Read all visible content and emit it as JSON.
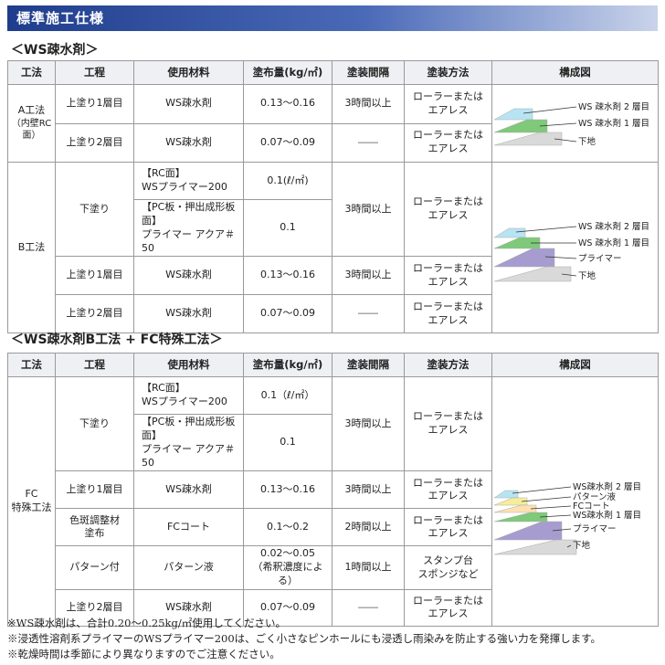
{
  "banner": {
    "title": "標準施工仕様"
  },
  "ws": {
    "title": "＜WS疎水剤＞",
    "headers": [
      "工法",
      "工程",
      "使用材料",
      "塗布量(kg/㎡)",
      "塗装間隔",
      "塗装方法",
      "構成図"
    ],
    "methodA": "A工法",
    "methodA_sub": "（内壁RC面）",
    "methodB": "B工法",
    "rows": {
      "a1": {
        "step": "上塗り1層目",
        "material": "WS疎水剤",
        "amount": "0.13～0.16",
        "interval": "3時間以上",
        "method1": "ローラーまたは",
        "method2": "エアレス"
      },
      "a2": {
        "step": "上塗り2層目",
        "material": "WS疎水剤",
        "amount": "0.07～0.09",
        "interval": "――",
        "method1": "ローラーまたは",
        "method2": "エアレス"
      },
      "b0": {
        "step": "下塗り",
        "mat1a": "【RC面】",
        "mat1b": "WSプライマー200",
        "amt1": "0.1(ℓ/㎡)",
        "mat2a": "【PC板・押出成形板面】",
        "mat2b": "プライマー アクア＃50",
        "amt2": "0.1",
        "interval": "3時間以上",
        "method1": "ローラーまたは",
        "method2": "エアレス"
      },
      "b1": {
        "step": "上塗り1層目",
        "material": "WS疎水剤",
        "amount": "0.13～0.16",
        "interval": "3時間以上",
        "method1": "ローラーまたは",
        "method2": "エアレス"
      },
      "b2": {
        "step": "上塗り2層目",
        "material": "WS疎水剤",
        "amount": "0.07～0.09",
        "interval": "――",
        "method1": "ローラーまたは",
        "method2": "エアレス"
      }
    },
    "figA": {
      "l1": "WS 疎水剤 2 層目",
      "l2": "WS 疎水剤 1 層目",
      "l3": "下地"
    },
    "figB": {
      "l1": "WS 疎水剤 2 層目",
      "l2": "WS 疎水剤 1 層目",
      "l3": "プライマー",
      "l4": "下地"
    }
  },
  "fc": {
    "title": "＜WS疎水剤B工法 + FC特殊工法＞",
    "headers": [
      "工法",
      "工程",
      "使用材料",
      "塗布量(kg/㎡)",
      "塗装間隔",
      "塗装方法",
      "構成図"
    ],
    "method1": "FC",
    "method2": "特殊工法",
    "rows": {
      "r0": {
        "step": "下塗り",
        "mat1a": "【RC面】",
        "mat1b": "WSプライマー200",
        "amt1": "0.1（ℓ/㎡）",
        "mat2a": "【PC板・押出成形板面】",
        "mat2b": "プライマー アクア＃50",
        "amt2": "0.1",
        "interval": "3時間以上",
        "method1": "ローラーまたは",
        "method2": "エアレス"
      },
      "r1": {
        "step": "上塗り1層目",
        "material": "WS疎水剤",
        "amount": "0.13～0.16",
        "interval": "3時間以上",
        "method1": "ローラーまたは",
        "method2": "エアレス"
      },
      "r2": {
        "step1": "色斑調整材",
        "step2": "塗布",
        "material": "FCコート",
        "amount": "0.1～0.2",
        "interval": "2時間以上",
        "method1": "ローラーまたは",
        "method2": "エアレス"
      },
      "r3": {
        "step": "パターン付",
        "material": "パターン液",
        "amount1": "0.02～0.05",
        "amount2": "（希釈濃度による）",
        "interval": "1時間以上",
        "method1": "スタンプ台",
        "method2": "スポンジなど"
      },
      "r4": {
        "step": "上塗り2層目",
        "material": "WS疎水剤",
        "amount": "0.07～0.09",
        "interval": "――",
        "method1": "ローラーまたは",
        "method2": "エアレス"
      }
    },
    "fig": {
      "l1": "WS疎水剤 2 層目",
      "l2": "パターン液",
      "l3": "FCコート",
      "l4": "WS疎水剤 1 層目",
      "l5": "プライマー",
      "l6": "下地"
    }
  },
  "notes": [
    "※WS疎水剤は、合計0.20～0.25kg/㎡使用してください。",
    "※浸透性溶剤系プライマーのWSプライマー200は、ごく小さなピンホールにも浸透し雨染みを防止する強い力を発揮します。",
    "※乾燥時間は季節により異なりますのでご注意ください。"
  ]
}
